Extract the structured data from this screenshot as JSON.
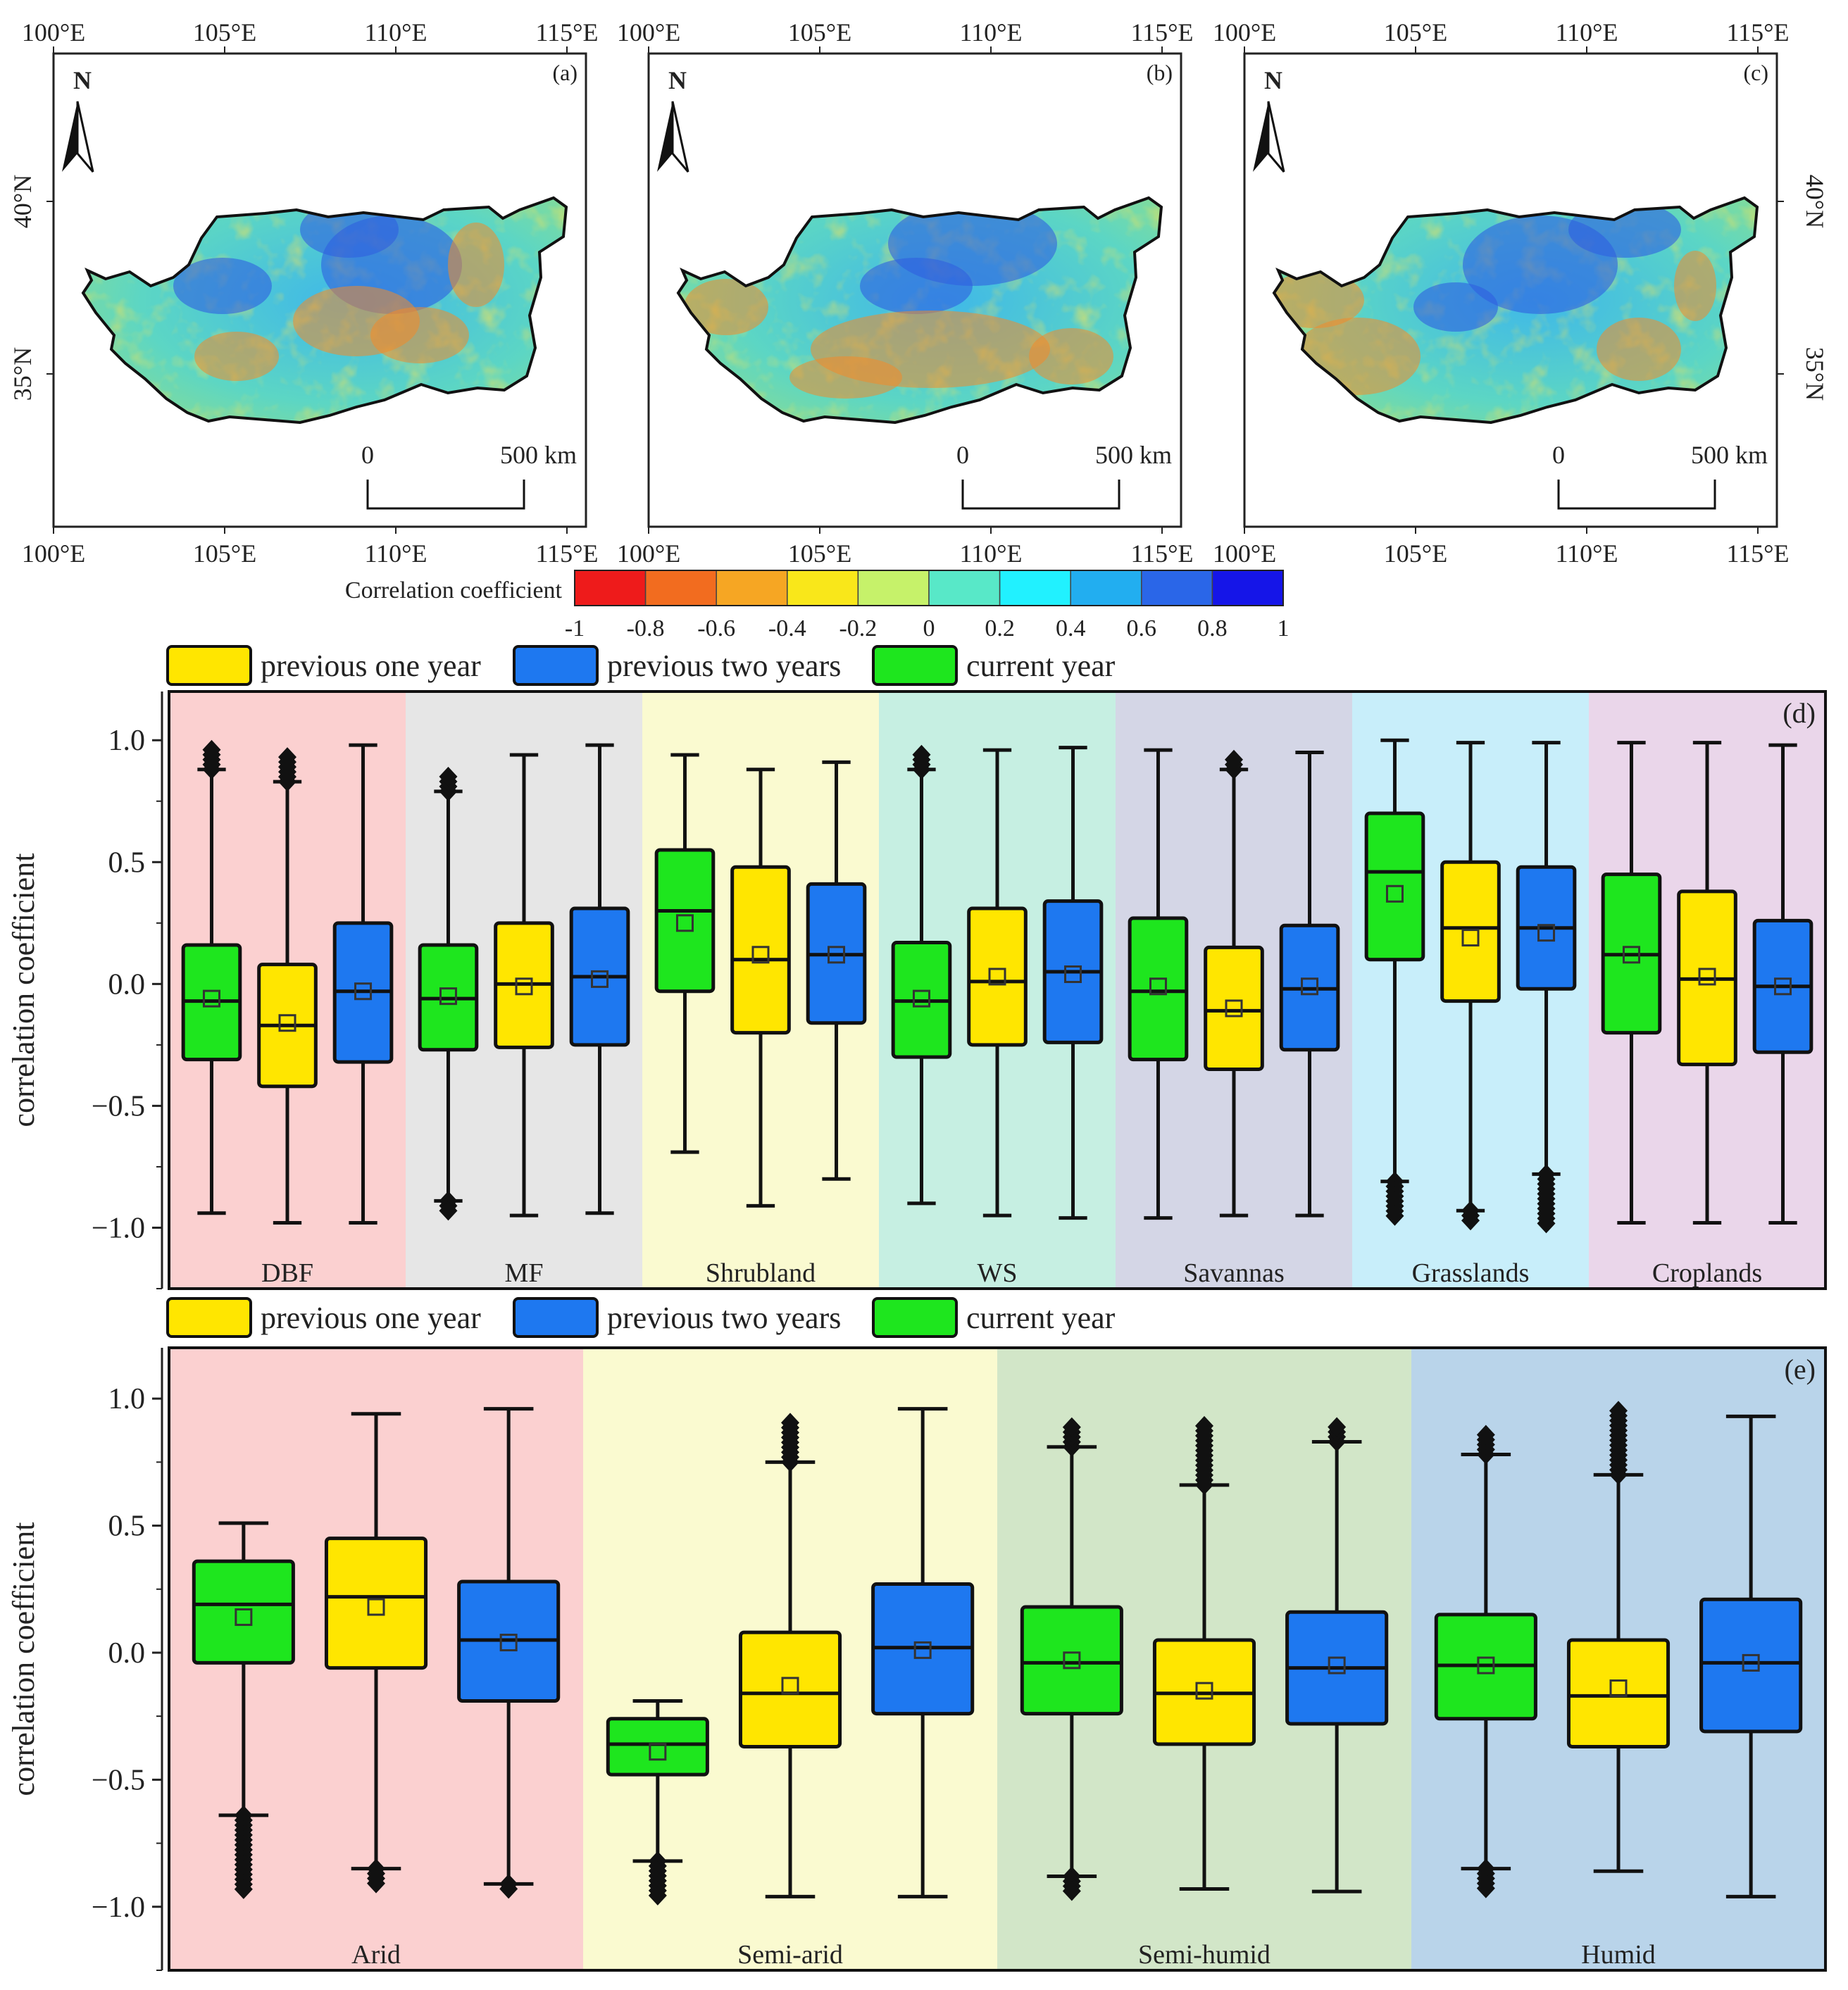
{
  "maps": {
    "panels": [
      {
        "label": "(a)"
      },
      {
        "label": "(b)"
      },
      {
        "label": "(c)"
      }
    ],
    "lon_ticks": [
      "100°E",
      "105°E",
      "110°E",
      "115°E"
    ],
    "lat_ticks": [
      "40°N",
      "35°N"
    ],
    "north": "N",
    "scale_zero": "0",
    "scale_end": "500 km",
    "colorbar_title": "Correlation coefficient",
    "colorbar_colors": [
      "#ee1b1b",
      "#f26c1f",
      "#f6a623",
      "#f9e71a",
      "#c6f26a",
      "#58e8c8",
      "#21f1ff",
      "#22aef0",
      "#2a66e8",
      "#1515e8"
    ],
    "colorbar_ticks": [
      "-1",
      "-0.8",
      "-0.6",
      "-0.4",
      "-0.2",
      "0",
      "0.2",
      "0.4",
      "0.6",
      "0.8",
      "1"
    ]
  },
  "legend_d": {
    "items": [
      {
        "label": "previous one year",
        "color": "#ffe600"
      },
      {
        "label": "previous two years",
        "color": "#1e78f0"
      },
      {
        "label": "current year",
        "color": "#1ee61e"
      }
    ]
  },
  "legend_e": {
    "items": [
      {
        "label": "previous one year",
        "color": "#ffe600"
      },
      {
        "label": "previous two years",
        "color": "#1e78f0"
      },
      {
        "label": "current year",
        "color": "#1ee61e"
      }
    ]
  },
  "chart_data": [
    {
      "type": "box",
      "panel": "(d)",
      "ylabel": "correlation coefficient",
      "ylim": [
        -1.25,
        1.2
      ],
      "yticks": [
        "1.0",
        "0.5",
        "0.0",
        "−0.5",
        "−1.0"
      ],
      "ytick_values": [
        1.0,
        0.5,
        0.0,
        -0.5,
        -1.0
      ],
      "groups": [
        {
          "name": "DBF",
          "bg": "#fbd0d0",
          "boxes": [
            {
              "series": "current year",
              "color": "#1ee61e",
              "whisker_low": -0.94,
              "q1": -0.31,
              "median": -0.07,
              "q3": 0.16,
              "whisker_high": 0.88,
              "mean": -0.06,
              "outliers_high": [
                0.97
              ]
            },
            {
              "series": "previous one year",
              "color": "#ffe600",
              "whisker_low": -0.98,
              "q1": -0.42,
              "median": -0.17,
              "q3": 0.08,
              "whisker_high": 0.83,
              "mean": -0.16,
              "outliers_high": [
                0.95
              ]
            },
            {
              "series": "previous two years",
              "color": "#1e78f0",
              "whisker_low": -0.98,
              "q1": -0.32,
              "median": -0.03,
              "q3": 0.25,
              "whisker_high": 0.98,
              "mean": -0.03
            }
          ]
        },
        {
          "name": "MF",
          "bg": "#e6e6e6",
          "boxes": [
            {
              "series": "current year",
              "color": "#1ee61e",
              "whisker_low": -0.89,
              "q1": -0.27,
              "median": -0.06,
              "q3": 0.16,
              "whisker_high": 0.79,
              "mean": -0.05,
              "outliers_high": [
                0.87
              ],
              "outliers_low": [
                -0.94
              ]
            },
            {
              "series": "previous one year",
              "color": "#ffe600",
              "whisker_low": -0.95,
              "q1": -0.26,
              "median": 0.0,
              "q3": 0.25,
              "whisker_high": 0.94,
              "mean": -0.01
            },
            {
              "series": "previous two years",
              "color": "#1e78f0",
              "whisker_low": -0.94,
              "q1": -0.25,
              "median": 0.03,
              "q3": 0.31,
              "whisker_high": 0.98,
              "mean": 0.02
            }
          ]
        },
        {
          "name": "Shrubland",
          "bg": "#fafad0",
          "boxes": [
            {
              "series": "current year",
              "color": "#1ee61e",
              "whisker_low": -0.69,
              "q1": -0.03,
              "median": 0.3,
              "q3": 0.55,
              "whisker_high": 0.94,
              "mean": 0.25
            },
            {
              "series": "previous one year",
              "color": "#ffe600",
              "whisker_low": -0.91,
              "q1": -0.2,
              "median": 0.1,
              "q3": 0.48,
              "whisker_high": 0.88,
              "mean": 0.12
            },
            {
              "series": "previous two years",
              "color": "#1e78f0",
              "whisker_low": -0.8,
              "q1": -0.16,
              "median": 0.12,
              "q3": 0.41,
              "whisker_high": 0.91,
              "mean": 0.12
            }
          ]
        },
        {
          "name": "WS",
          "bg": "#c6efe2",
          "boxes": [
            {
              "series": "current year",
              "color": "#1ee61e",
              "whisker_low": -0.9,
              "q1": -0.3,
              "median": -0.07,
              "q3": 0.17,
              "whisker_high": 0.88,
              "mean": -0.06,
              "outliers_high": [
                0.96
              ]
            },
            {
              "series": "previous one year",
              "color": "#ffe600",
              "whisker_low": -0.95,
              "q1": -0.25,
              "median": 0.01,
              "q3": 0.31,
              "whisker_high": 0.96,
              "mean": 0.03
            },
            {
              "series": "previous two years",
              "color": "#1e78f0",
              "whisker_low": -0.96,
              "q1": -0.24,
              "median": 0.05,
              "q3": 0.34,
              "whisker_high": 0.97,
              "mean": 0.04
            }
          ]
        },
        {
          "name": "Savannas",
          "bg": "#d4d6e6",
          "boxes": [
            {
              "series": "current year",
              "color": "#1ee61e",
              "whisker_low": -0.96,
              "q1": -0.31,
              "median": -0.03,
              "q3": 0.27,
              "whisker_high": 0.96,
              "mean": -0.01
            },
            {
              "series": "previous one year",
              "color": "#ffe600",
              "whisker_low": -0.95,
              "q1": -0.35,
              "median": -0.11,
              "q3": 0.15,
              "whisker_high": 0.88,
              "mean": -0.1,
              "outliers_high": [
                0.94
              ]
            },
            {
              "series": "previous two years",
              "color": "#1e78f0",
              "whisker_low": -0.95,
              "q1": -0.27,
              "median": -0.02,
              "q3": 0.24,
              "whisker_high": 0.95,
              "mean": -0.01
            }
          ]
        },
        {
          "name": "Grasslands",
          "bg": "#c8eefa",
          "boxes": [
            {
              "series": "current year",
              "color": "#1ee61e",
              "whisker_low": -0.81,
              "q1": 0.1,
              "median": 0.46,
              "q3": 0.7,
              "whisker_high": 1.0,
              "mean": 0.37,
              "outliers_low": [
                -0.96
              ]
            },
            {
              "series": "previous one year",
              "color": "#ffe600",
              "whisker_low": -0.93,
              "q1": -0.07,
              "median": 0.23,
              "q3": 0.5,
              "whisker_high": 0.99,
              "mean": 0.19,
              "outliers_low": [
                -0.99
              ]
            },
            {
              "series": "previous two years",
              "color": "#1e78f0",
              "whisker_low": -0.78,
              "q1": -0.02,
              "median": 0.23,
              "q3": 0.48,
              "whisker_high": 0.99,
              "mean": 0.21,
              "outliers_low": [
                -0.99
              ]
            }
          ]
        },
        {
          "name": "Croplands",
          "bg": "#ead6ea",
          "boxes": [
            {
              "series": "current year",
              "color": "#1ee61e",
              "whisker_low": -0.98,
              "q1": -0.2,
              "median": 0.12,
              "q3": 0.45,
              "whisker_high": 0.99,
              "mean": 0.12
            },
            {
              "series": "previous one year",
              "color": "#ffe600",
              "whisker_low": -0.98,
              "q1": -0.33,
              "median": 0.02,
              "q3": 0.38,
              "whisker_high": 0.99,
              "mean": 0.03
            },
            {
              "series": "previous two years",
              "color": "#1e78f0",
              "whisker_low": -0.98,
              "q1": -0.28,
              "median": -0.01,
              "q3": 0.26,
              "whisker_high": 0.98,
              "mean": -0.01
            }
          ]
        }
      ]
    },
    {
      "type": "box",
      "panel": "(e)",
      "ylabel": "correlation coefficient",
      "ylim": [
        -1.25,
        1.2
      ],
      "yticks": [
        "1.0",
        "0.5",
        "0.0",
        "−0.5",
        "−1.0"
      ],
      "ytick_values": [
        1.0,
        0.5,
        0.0,
        -0.5,
        -1.0
      ],
      "groups": [
        {
          "name": "Arid",
          "bg": "#fbd0d0",
          "boxes": [
            {
              "series": "current year",
              "color": "#1ee61e",
              "whisker_low": -0.64,
              "q1": -0.04,
              "median": 0.19,
              "q3": 0.36,
              "whisker_high": 0.51,
              "mean": 0.14,
              "outliers_low": [
                -0.94
              ]
            },
            {
              "series": "previous one year",
              "color": "#ffe600",
              "whisker_low": -0.85,
              "q1": -0.06,
              "median": 0.22,
              "q3": 0.45,
              "whisker_high": 0.94,
              "mean": 0.18,
              "outliers_low": [
                -0.92
              ]
            },
            {
              "series": "previous two years",
              "color": "#1e78f0",
              "whisker_low": -0.91,
              "q1": -0.19,
              "median": 0.05,
              "q3": 0.28,
              "whisker_high": 0.96,
              "mean": 0.04,
              "outliers_low": [
                -0.94
              ]
            }
          ]
        },
        {
          "name": "Semi-arid",
          "bg": "#fafad0",
          "boxes": [
            {
              "series": "current year",
              "color": "#1ee61e",
              "whisker_low": -0.82,
              "q1": -0.48,
              "median": -0.36,
              "q3": -0.26,
              "whisker_high": -0.19,
              "mean": -0.39,
              "outliers_low": [
                -0.96
              ]
            },
            {
              "series": "previous one year",
              "color": "#ffe600",
              "whisker_low": -0.96,
              "q1": -0.37,
              "median": -0.16,
              "q3": 0.08,
              "whisker_high": 0.75,
              "mean": -0.13,
              "outliers_high": [
                0.92
              ]
            },
            {
              "series": "previous two years",
              "color": "#1e78f0",
              "whisker_low": -0.96,
              "q1": -0.24,
              "median": 0.02,
              "q3": 0.27,
              "whisker_high": 0.96,
              "mean": 0.01
            }
          ]
        },
        {
          "name": "Semi-humid",
          "bg": "#d2e6c8",
          "boxes": [
            {
              "series": "current year",
              "color": "#1ee61e",
              "whisker_low": -0.88,
              "q1": -0.24,
              "median": -0.04,
              "q3": 0.18,
              "whisker_high": 0.81,
              "mean": -0.03,
              "outliers_high": [
                0.9
              ],
              "outliers_low": [
                -0.95
              ]
            },
            {
              "series": "previous one year",
              "color": "#ffe600",
              "whisker_low": -0.93,
              "q1": -0.36,
              "median": -0.16,
              "q3": 0.05,
              "whisker_high": 0.66,
              "mean": -0.15,
              "outliers_high": [
                0.9
              ]
            },
            {
              "series": "previous two years",
              "color": "#1e78f0",
              "whisker_low": -0.94,
              "q1": -0.28,
              "median": -0.06,
              "q3": 0.16,
              "whisker_high": 0.83,
              "mean": -0.05,
              "outliers_high": [
                0.89
              ]
            }
          ]
        },
        {
          "name": "Humid",
          "bg": "#b9d4ea",
          "boxes": [
            {
              "series": "current year",
              "color": "#1ee61e",
              "whisker_low": -0.85,
              "q1": -0.26,
              "median": -0.05,
              "q3": 0.15,
              "whisker_high": 0.78,
              "mean": -0.05,
              "outliers_high": [
                0.87
              ],
              "outliers_low": [
                -0.94
              ]
            },
            {
              "series": "previous one year",
              "color": "#ffe600",
              "whisker_low": -0.86,
              "q1": -0.37,
              "median": -0.17,
              "q3": 0.05,
              "whisker_high": 0.7,
              "mean": -0.14,
              "outliers_high": [
                0.96
              ]
            },
            {
              "series": "previous two years",
              "color": "#1e78f0",
              "whisker_low": -0.96,
              "q1": -0.31,
              "median": -0.04,
              "q3": 0.21,
              "whisker_high": 0.93,
              "mean": -0.04
            }
          ]
        }
      ]
    }
  ]
}
